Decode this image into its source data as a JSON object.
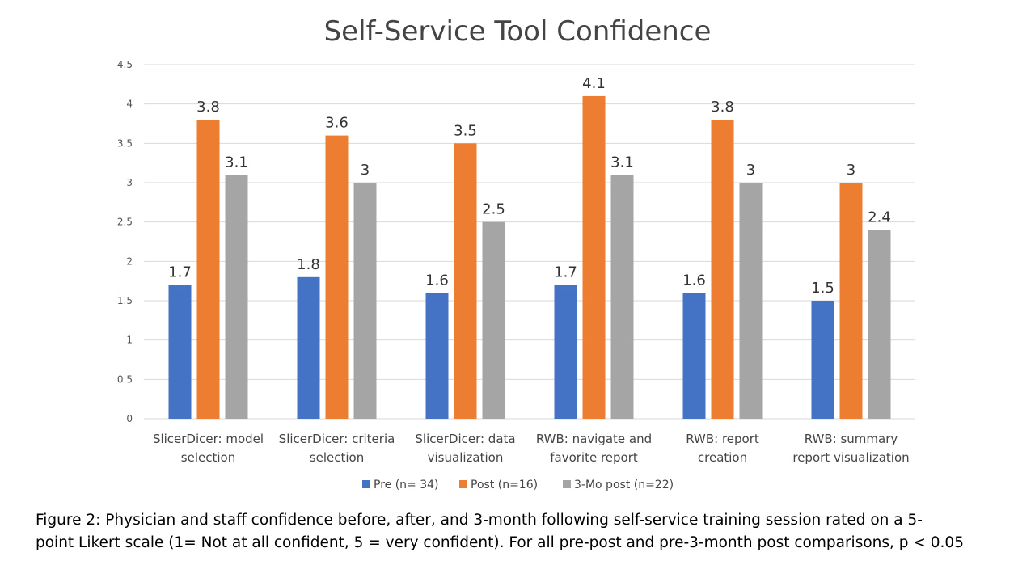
{
  "chart_data": {
    "type": "bar",
    "title": "Self-Service Tool Confidence",
    "xlabel": "",
    "ylabel": "",
    "ylim": [
      0,
      4.5
    ],
    "yticks": [
      "0",
      "0.5",
      "1",
      "1.5",
      "2",
      "2.5",
      "3",
      "3.5",
      "4",
      "4.5"
    ],
    "grid": true,
    "legend_position": "bottom",
    "categories": [
      [
        "SlicerDicer: model",
        "selection"
      ],
      [
        "SlicerDicer: criteria",
        "selection"
      ],
      [
        "SlicerDicer: data",
        "visualization"
      ],
      [
        "RWB: navigate and",
        "favorite report"
      ],
      [
        "RWB: report",
        "creation"
      ],
      [
        "RWB: summary",
        "report visualization"
      ]
    ],
    "series": [
      {
        "name": "Pre (n= 34)",
        "color": "#4472C4",
        "values": [
          1.7,
          1.8,
          1.6,
          1.7,
          1.6,
          1.5
        ],
        "labels": [
          "1.7",
          "1.8",
          "1.6",
          "1.7",
          "1.6",
          "1.5"
        ]
      },
      {
        "name": "Post (n=16)",
        "color": "#ED7D31",
        "values": [
          3.8,
          3.6,
          3.5,
          4.1,
          3.8,
          3.0
        ],
        "labels": [
          "3.8",
          "3.6",
          "3.5",
          "4.1",
          "3.8",
          "3"
        ]
      },
      {
        "name": "3-Mo post (n=22)",
        "color": "#A5A5A5",
        "values": [
          3.1,
          3.0,
          2.5,
          3.1,
          3.0,
          2.4
        ],
        "labels": [
          "3.1",
          "3",
          "2.5",
          "3.1",
          "3",
          "2.4"
        ]
      }
    ]
  },
  "caption": {
    "line1": "Figure 2: Physician and staff confidence before, after, and 3-month following self-service training session rated on a 5-",
    "line2": "point Likert scale (1= Not at all confident, 5 = very confident). For all pre-post and pre-3-month post comparisons, p < 0.05"
  }
}
